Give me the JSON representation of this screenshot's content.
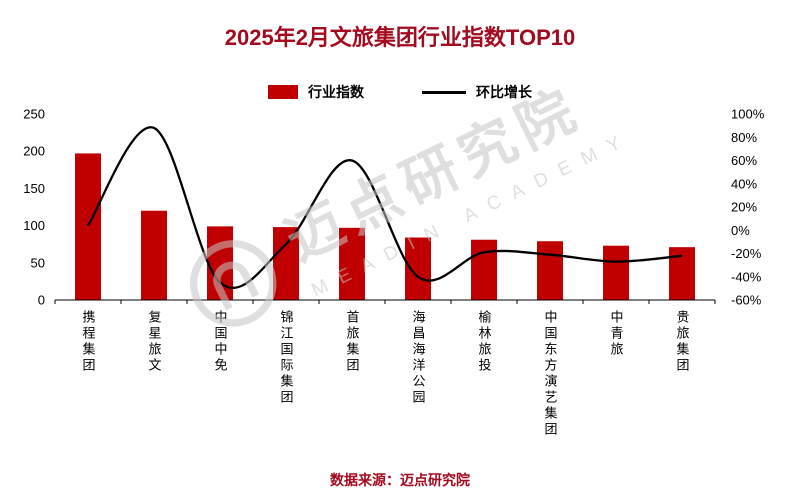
{
  "title": "2025年2月文旅集团行业指数TOP10",
  "source_note": "数据来源：迈点研究院",
  "watermark": {
    "cn": "迈点研究院",
    "en": "MEADIN ACADEMY"
  },
  "colors": {
    "bar": "#C00000",
    "line": "#000000",
    "title": "#A40A1E",
    "source": "#A40A1E",
    "axis_text": "#000000",
    "watermark": "#C6C6C6"
  },
  "chart_data": {
    "type": "bar",
    "subtype": "combo-bar-line",
    "title": "2025年2月文旅集团行业指数TOP10",
    "grid": false,
    "legend_position": "top",
    "categories": [
      "携程集团",
      "复星旅文",
      "中国中免",
      "锦江国际集团",
      "首旅集团",
      "海昌海洋公园",
      "榆林旅投",
      "中国东方演艺集团",
      "中青旅",
      "贵旅集团"
    ],
    "series": [
      {
        "name": "行业指数",
        "type": "bar",
        "axis": "left",
        "color": "#C00000",
        "values": [
          197,
          120,
          99,
          98,
          97,
          84,
          81,
          79,
          73,
          71
        ]
      },
      {
        "name": "环比增长",
        "type": "line",
        "axis": "right",
        "color": "#000000",
        "unit": "%",
        "values": [
          4,
          88,
          -45,
          -12,
          60,
          -40,
          -19,
          -21,
          -27,
          -22
        ]
      }
    ],
    "left_axis": {
      "min": 0,
      "max": 250,
      "step": 50,
      "tick_labels": [
        "0",
        "50",
        "100",
        "150",
        "200",
        "250"
      ]
    },
    "right_axis": {
      "min": -60,
      "max": 100,
      "step": 20,
      "unit": "%",
      "tick_labels": [
        "-60%",
        "-40%",
        "-20%",
        "0%",
        "20%",
        "40%",
        "60%",
        "80%",
        "100%"
      ]
    }
  }
}
